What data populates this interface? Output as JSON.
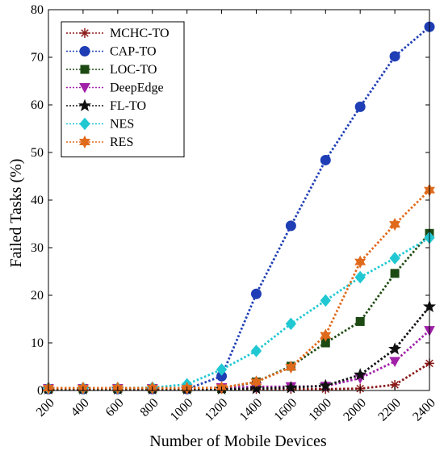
{
  "chart_data": {
    "type": "line",
    "xlabel": "Number of Mobile Devices",
    "ylabel": "Failed Tasks (%)",
    "x": [
      200,
      400,
      600,
      800,
      1000,
      1200,
      1400,
      1600,
      1800,
      2000,
      2200,
      2400
    ],
    "xlim": [
      200,
      2400
    ],
    "ylim": [
      0,
      80
    ],
    "yticks": [
      0,
      10,
      20,
      30,
      40,
      50,
      60,
      70,
      80
    ],
    "grid": false,
    "legend_position": "top-left",
    "line_style": "dotted",
    "series": [
      {
        "name": "MCHC-TO",
        "color": "#8b1a1a",
        "marker": "asterisk",
        "values": [
          0.3,
          0.3,
          0.3,
          0.3,
          0.3,
          0.3,
          0.3,
          0.3,
          0.3,
          0.4,
          1.2,
          5.7
        ]
      },
      {
        "name": "CAP-TO",
        "color": "#1f3eb5",
        "marker": "circle",
        "values": [
          0.3,
          0.3,
          0.3,
          0.3,
          0.3,
          3.0,
          20.3,
          34.6,
          48.4,
          59.6,
          70.2,
          76.4
        ]
      },
      {
        "name": "LOC-TO",
        "color": "#1d4a12",
        "marker": "square",
        "values": [
          0.4,
          0.4,
          0.4,
          0.4,
          0.4,
          0.4,
          1.8,
          5.1,
          10.0,
          14.5,
          24.6,
          33.0
        ]
      },
      {
        "name": "DeepEdge",
        "color": "#a020a8",
        "marker": "triangle-down",
        "values": [
          0.4,
          0.4,
          0.4,
          0.4,
          0.4,
          0.6,
          0.8,
          0.8,
          0.9,
          2.6,
          6.1,
          12.6
        ]
      },
      {
        "name": "FL-TO",
        "color": "#111111",
        "marker": "star",
        "values": [
          0.3,
          0.3,
          0.3,
          0.3,
          0.3,
          0.3,
          0.4,
          0.6,
          1.0,
          3.3,
          8.7,
          17.6
        ]
      },
      {
        "name": "NES",
        "color": "#21c8d2",
        "marker": "diamond",
        "values": [
          0.5,
          0.5,
          0.5,
          0.6,
          1.3,
          4.4,
          8.3,
          14.0,
          18.9,
          23.8,
          27.8,
          32.1
        ]
      },
      {
        "name": "RES",
        "color": "#e06a1c",
        "marker": "hexagram",
        "values": [
          0.5,
          0.5,
          0.5,
          0.5,
          0.5,
          0.6,
          1.8,
          4.9,
          11.6,
          27.0,
          34.9,
          42.1
        ]
      }
    ]
  }
}
